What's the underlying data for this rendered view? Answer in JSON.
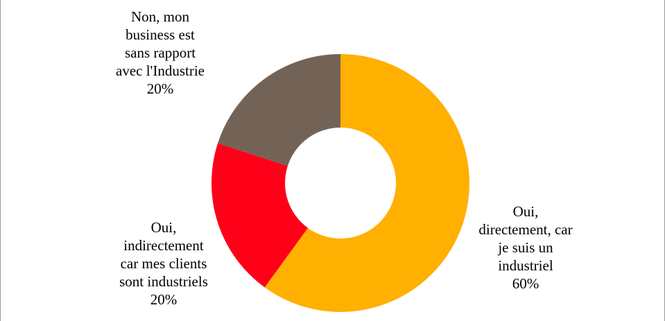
{
  "chart_data": {
    "type": "pie",
    "style": "donut",
    "title": "",
    "start_angle_deg": 0,
    "direction": "clockwise",
    "slices": [
      {
        "label_lines": [
          "Oui,",
          "directement, car",
          "je suis un",
          "industriel"
        ],
        "value": 60,
        "percent_text": "60%",
        "color": "#FFB000"
      },
      {
        "label_lines": [
          "Oui,",
          "indirectement",
          "car mes clients",
          "sont industriels"
        ],
        "value": 20,
        "percent_text": "20%",
        "color": "#FF0019"
      },
      {
        "label_lines": [
          "Non, mon",
          "business est",
          "sans rapport",
          "avec l'Industrie"
        ],
        "value": 20,
        "percent_text": "20%",
        "color": "#736357"
      }
    ],
    "legend": "none"
  }
}
